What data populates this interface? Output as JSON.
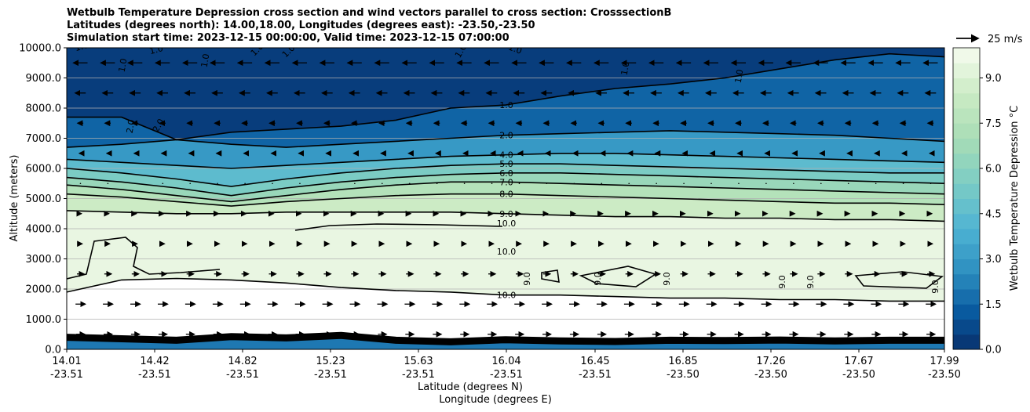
{
  "title": {
    "line1": "Wetbulb Temperature Depression cross section and wind vectors parallel to cross section: CrosssectionB",
    "line2": "Latitudes (degrees north): 14.00,18.00, Longitudes (degrees east): -23.50,-23.50",
    "line3": "Simulation start time: 2023-12-15 00:00:00, Valid time: 2023-12-15 07:00:00"
  },
  "chart_data": {
    "type": "heatmap",
    "ylabel": "Altitude (meters)",
    "xlabel_lat": "Latitude (degrees N)",
    "xlabel_lon": "Longitude (degrees E)",
    "ylim": [
      0,
      10000
    ],
    "yticks": [
      "0.0",
      "1000.0",
      "2000.0",
      "3000.0",
      "4000.0",
      "5000.0",
      "6000.0",
      "7000.0",
      "8000.0",
      "9000.0",
      "10000.0"
    ],
    "xticks": [
      {
        "lat": "14.01",
        "lon": "-23.51"
      },
      {
        "lat": "14.42",
        "lon": "-23.51"
      },
      {
        "lat": "14.82",
        "lon": "-23.51"
      },
      {
        "lat": "15.23",
        "lon": "-23.51"
      },
      {
        "lat": "15.63",
        "lon": "-23.51"
      },
      {
        "lat": "16.04",
        "lon": "-23.51"
      },
      {
        "lat": "16.45",
        "lon": "-23.51"
      },
      {
        "lat": "16.85",
        "lon": "-23.50"
      },
      {
        "lat": "17.26",
        "lon": "-23.50"
      },
      {
        "lat": "17.67",
        "lon": "-23.50"
      },
      {
        "lat": "17.99",
        "lon": "-23.50"
      }
    ],
    "grid": "horizontal",
    "colorbar": {
      "label": "Wetbulb Temperature Depression °C",
      "range": [
        0,
        10
      ],
      "ticks": [
        "0.0",
        "1.5",
        "3.0",
        "4.5",
        "6.0",
        "7.5",
        "9.0"
      ],
      "colormap": "GnBu_r"
    },
    "wind_key": {
      "label": "25 m/s"
    },
    "contour_labels": [
      {
        "text": "1.0"
      },
      {
        "text": "2.0"
      },
      {
        "text": "4.0"
      },
      {
        "text": "5.0"
      },
      {
        "text": "6.0"
      },
      {
        "text": "7.0"
      },
      {
        "text": "8.0"
      },
      {
        "text": "9.0"
      },
      {
        "text": "10.0"
      }
    ],
    "contours": [
      {
        "level": 1.0,
        "y": [
          7700,
          7700,
          6950,
          7200,
          7300,
          7400,
          7600,
          8000,
          8100,
          8400,
          8650,
          8800,
          9000,
          9300,
          9600,
          9800,
          9700
        ]
      },
      {
        "level": 2.0,
        "y": [
          6700,
          6800,
          6950,
          6800,
          6700,
          6800,
          6900,
          7000,
          7100,
          7150,
          7200,
          7250,
          7200,
          7150,
          7100,
          7000,
          6900
        ]
      },
      {
        "level": 4.0,
        "y": [
          6300,
          6200,
          6100,
          6000,
          6100,
          6200,
          6300,
          6400,
          6450,
          6500,
          6500,
          6450,
          6400,
          6350,
          6300,
          6250,
          6200
        ]
      },
      {
        "level": 5.0,
        "y": [
          6000,
          5850,
          5650,
          5400,
          5650,
          5850,
          6000,
          6100,
          6150,
          6150,
          6100,
          6050,
          6000,
          5950,
          5900,
          5850,
          5850
        ]
      },
      {
        "level": 6.0,
        "y": [
          5700,
          5550,
          5350,
          5100,
          5350,
          5550,
          5700,
          5800,
          5850,
          5850,
          5800,
          5750,
          5700,
          5650,
          5600,
          5550,
          5500
        ]
      },
      {
        "level": 7.0,
        "y": [
          5450,
          5300,
          5100,
          4900,
          5100,
          5300,
          5450,
          5550,
          5550,
          5500,
          5450,
          5400,
          5350,
          5300,
          5250,
          5200,
          5150
        ]
      },
      {
        "level": 8.0,
        "y": [
          5150,
          5050,
          4900,
          4750,
          4900,
          5000,
          5100,
          5150,
          5150,
          5100,
          5050,
          5000,
          4950,
          4900,
          4850,
          4850,
          4800
        ]
      },
      {
        "level": 9.0,
        "y": [
          4600,
          4550,
          4500,
          4500,
          4550,
          4550,
          4550,
          4550,
          4500,
          4450,
          4400,
          4400,
          4350,
          4350,
          4300,
          4300,
          4250
        ]
      },
      {
        "level": 10.0,
        "y": [
          1900,
          2300,
          2350,
          2300,
          2200,
          2050,
          1950,
          1900,
          1800,
          1800,
          1750,
          1700,
          1700,
          1650,
          1650,
          1600,
          1600
        ]
      }
    ],
    "wind_vectors": {
      "rows": [
        9500,
        8500,
        7500,
        6500,
        5500,
        4500,
        3500,
        2500,
        1500,
        500
      ],
      "u": [
        -20,
        -15,
        -8,
        -3,
        1,
        3,
        5,
        10,
        14,
        12
      ]
    }
  }
}
